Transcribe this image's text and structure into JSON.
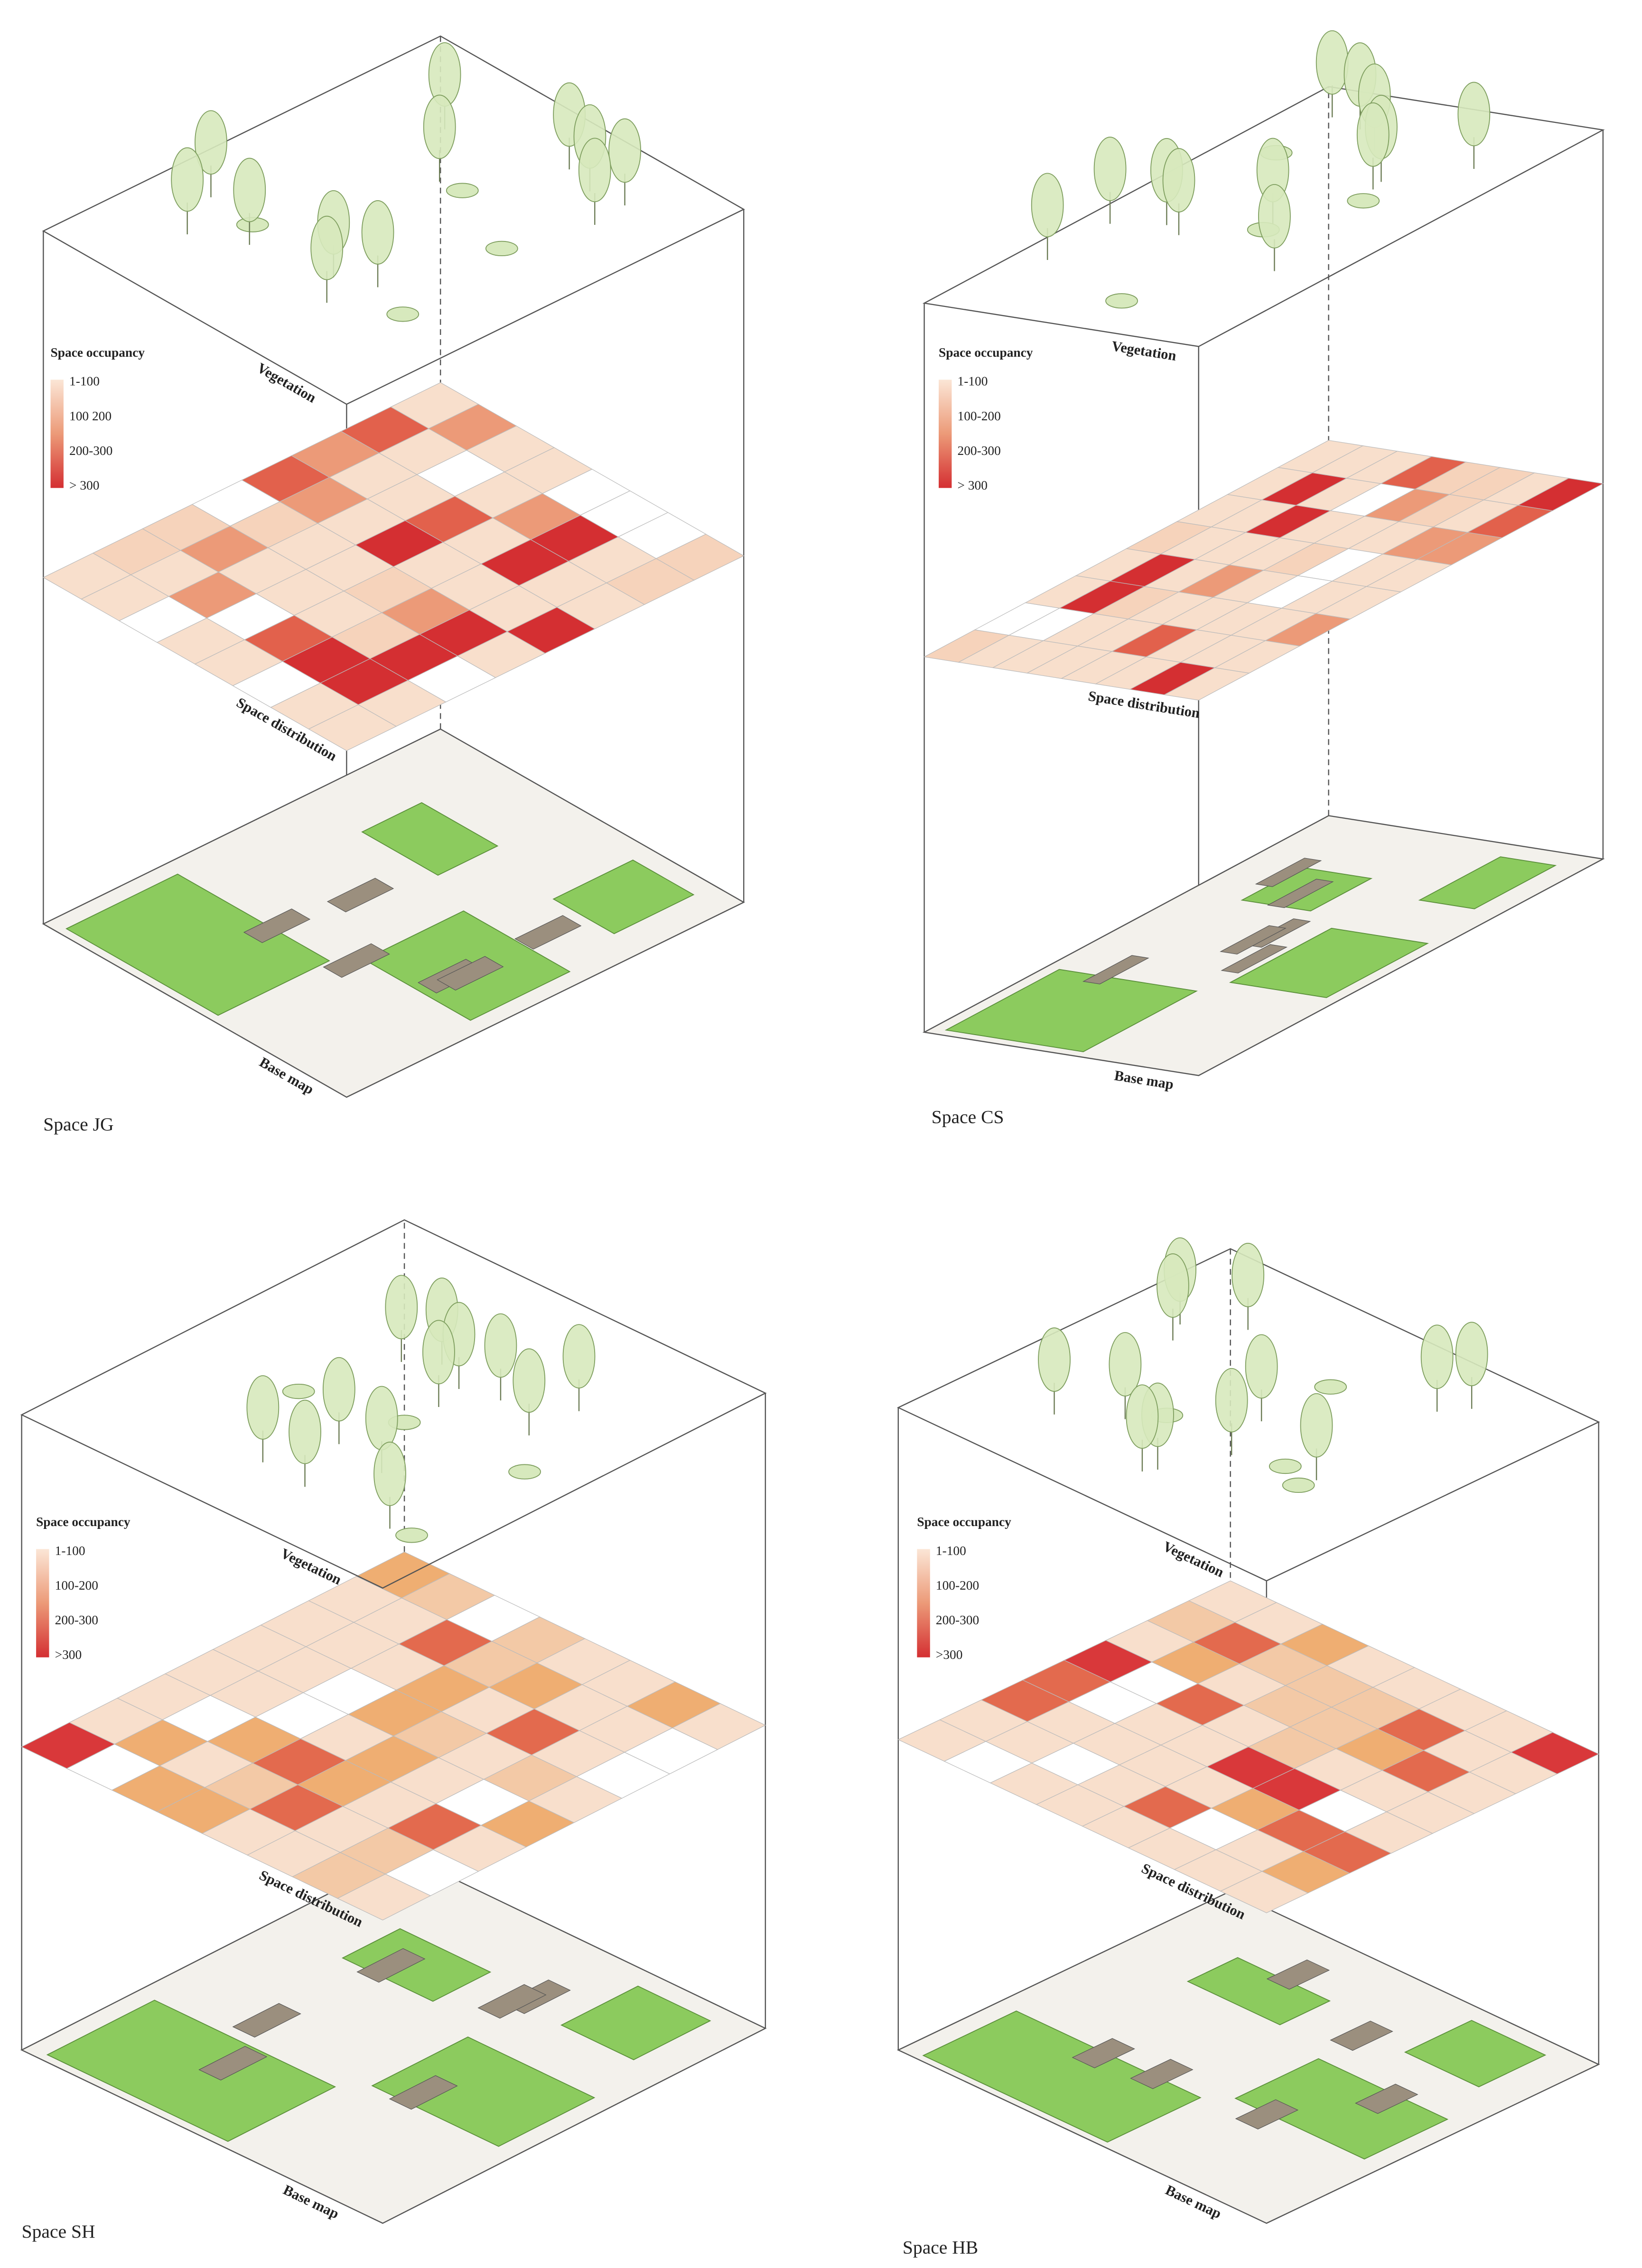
{
  "panels": [
    {
      "title": "Space JG",
      "legend": {
        "title": "Space occupancy",
        "items": [
          "1-100",
          "100 200",
          "200-300",
          "> 300"
        ]
      },
      "layers": [
        "Vegetation",
        "Space distribution",
        "Base map"
      ]
    },
    {
      "title": "Space CS",
      "legend": {
        "title": "Space occupancy",
        "items": [
          "1-100",
          "100-200",
          "200-300",
          "> 300"
        ]
      },
      "layers": [
        "Vegetation",
        "Space distribution",
        "Base map"
      ]
    },
    {
      "title": "Space SH",
      "legend": {
        "title": "Space occupancy",
        "items": [
          "1-100",
          "100-200",
          "200-300",
          ">300"
        ]
      },
      "layers": [
        "Vegetation",
        "Space distribution",
        "Base map"
      ]
    },
    {
      "title": "Space HB",
      "legend": {
        "title": "Space occupancy",
        "items": [
          "1-100",
          "100-200",
          "200-300",
          ">300"
        ]
      },
      "layers": [
        "Vegetation",
        "Space distribution",
        "Base map"
      ]
    }
  ]
}
